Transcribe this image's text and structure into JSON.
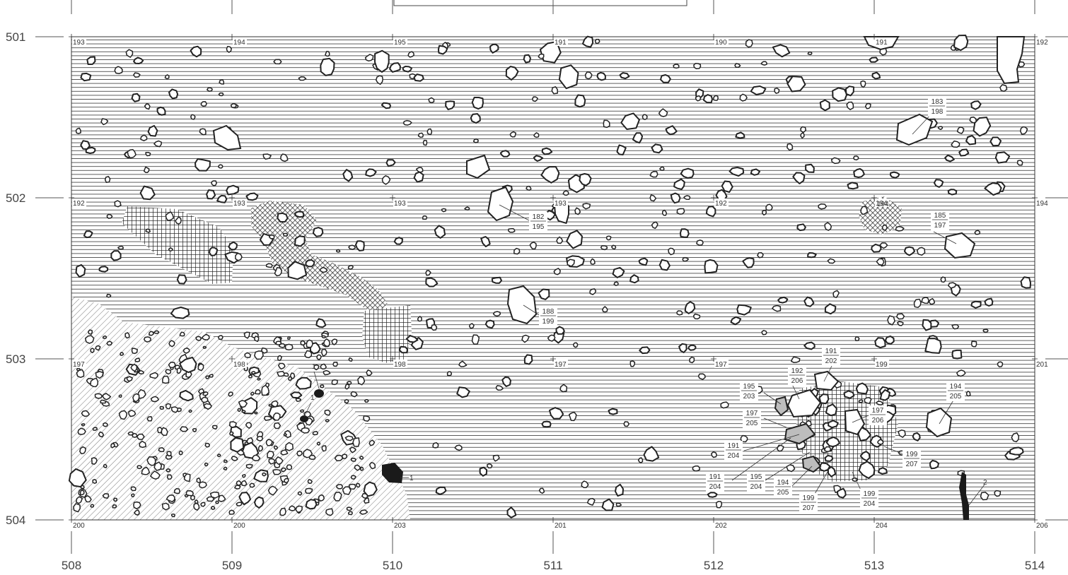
{
  "axes": {
    "x_ticks": [
      "508",
      "509",
      "510",
      "511",
      "512",
      "513",
      "514"
    ],
    "y_ticks": [
      "501",
      "502",
      "503",
      "504"
    ]
  },
  "grid_elevations": [
    {
      "text": "193",
      "gx": 0,
      "gy": 0
    },
    {
      "text": "194",
      "gx": 1,
      "gy": 0
    },
    {
      "text": "195",
      "gx": 2,
      "gy": 0
    },
    {
      "text": "191",
      "gx": 3,
      "gy": 0
    },
    {
      "text": "190",
      "gx": 4,
      "gy": 0
    },
    {
      "text": "191",
      "gx": 5,
      "gy": 0
    },
    {
      "text": "192",
      "gx": 6,
      "gy": 0
    },
    {
      "text": "192",
      "gx": 0,
      "gy": 1
    },
    {
      "text": "193",
      "gx": 1,
      "gy": 1
    },
    {
      "text": "193",
      "gx": 2,
      "gy": 1
    },
    {
      "text": "193",
      "gx": 3,
      "gy": 1
    },
    {
      "text": "192",
      "gx": 4,
      "gy": 1
    },
    {
      "text": "194",
      "gx": 5,
      "gy": 1
    },
    {
      "text": "194",
      "gx": 6,
      "gy": 1
    },
    {
      "text": "197",
      "gx": 0,
      "gy": 2
    },
    {
      "text": "198",
      "gx": 1,
      "gy": 2
    },
    {
      "text": "198",
      "gx": 2,
      "gy": 2
    },
    {
      "text": "197",
      "gx": 3,
      "gy": 2
    },
    {
      "text": "197",
      "gx": 4,
      "gy": 2
    },
    {
      "text": "199",
      "gx": 5,
      "gy": 2
    },
    {
      "text": "201",
      "gx": 6,
      "gy": 2
    },
    {
      "text": "200",
      "gx": 0,
      "gy": 3
    },
    {
      "text": "200",
      "gx": 1,
      "gy": 3
    },
    {
      "text": "203",
      "gx": 2,
      "gy": 3
    },
    {
      "text": "201",
      "gx": 3,
      "gy": 3
    },
    {
      "text": "202",
      "gx": 4,
      "gy": 3
    },
    {
      "text": "204",
      "gx": 5,
      "gy": 3
    },
    {
      "text": "206",
      "gx": 6,
      "gy": 3
    }
  ],
  "stone_annotations": [
    {
      "top": "182",
      "bottom": "195"
    },
    {
      "top": "183",
      "bottom": "198"
    },
    {
      "top": "185",
      "bottom": "197"
    },
    {
      "top": "188",
      "bottom": "199"
    },
    {
      "top": "191",
      "bottom": "202"
    },
    {
      "top": "192",
      "bottom": "206"
    },
    {
      "top": "195",
      "bottom": "203"
    },
    {
      "top": "197",
      "bottom": "205"
    },
    {
      "top": "191",
      "bottom": "204"
    },
    {
      "top": "197",
      "bottom": "206"
    },
    {
      "top": "194",
      "bottom": "205"
    },
    {
      "top": "199",
      "bottom": "207"
    },
    {
      "top": "191",
      "bottom": "204"
    },
    {
      "top": "195",
      "bottom": "204"
    },
    {
      "top": "194",
      "bottom": "205"
    },
    {
      "top": "199",
      "bottom": "207"
    },
    {
      "top": "199",
      "bottom": "204"
    }
  ],
  "feature_labels": [
    "1",
    "1",
    "1",
    "2",
    "194"
  ],
  "colors": {
    "ink": "#222222",
    "hatch": "#333333",
    "gray_stone": "#bdbdbd",
    "dark": "#1a1a1a"
  }
}
